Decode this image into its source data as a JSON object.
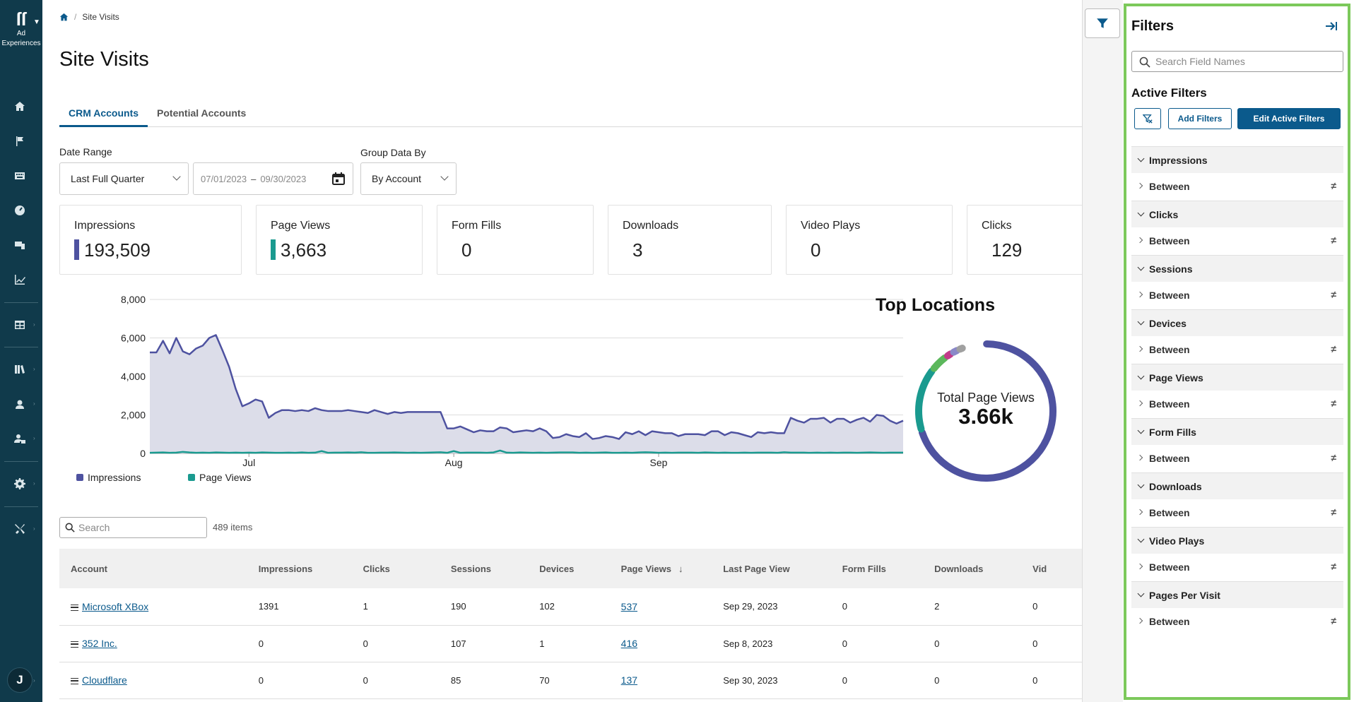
{
  "app": {
    "logo_text_1": "Ad",
    "logo_text_2": "Experiences",
    "avatar_initial": "J"
  },
  "breadcrumb": {
    "current": "Site Visits"
  },
  "page_title": "Site Visits",
  "tabs": [
    "CRM Accounts",
    "Potential Accounts"
  ],
  "controls": {
    "date_range_label": "Date Range",
    "date_range_value": "Last Full Quarter",
    "date_from": "07/01/2023",
    "date_to": "09/30/2023",
    "date_dash": "–",
    "group_label": "Group Data By",
    "group_value": "By Account"
  },
  "metrics": [
    {
      "label": "Impressions",
      "value": "193,509",
      "color": "#4e52a0"
    },
    {
      "label": "Page Views",
      "value": "3,663",
      "color": "#1a9a8f"
    },
    {
      "label": "Form Fills",
      "value": "0"
    },
    {
      "label": "Downloads",
      "value": "3"
    },
    {
      "label": "Video Plays",
      "value": "0"
    },
    {
      "label": "Clicks",
      "value": "129"
    }
  ],
  "chart_data": {
    "type": "area",
    "y_ticks": [
      "8,000",
      "6,000",
      "4,000",
      "2,000",
      "0"
    ],
    "ylim": [
      0,
      8000
    ],
    "x_ticks": [
      "Jul",
      "Aug",
      "Sep"
    ],
    "x_tick_index": [
      15,
      46,
      77
    ],
    "series": [
      {
        "name": "Impressions",
        "color": "#4e52a0",
        "fill": "#dcdde9",
        "values": [
          5250,
          5250,
          5850,
          5200,
          6000,
          5300,
          5150,
          5450,
          5600,
          6000,
          6150,
          5350,
          4500,
          3350,
          2450,
          2600,
          2800,
          2700,
          1850,
          2100,
          2250,
          2250,
          2200,
          2250,
          2200,
          2350,
          2250,
          2200,
          2200,
          2200,
          2250,
          2200,
          2150,
          2100,
          2250,
          2150,
          2050,
          2150,
          2100,
          2150,
          2150,
          2150,
          2150,
          2150,
          2150,
          1300,
          1300,
          1400,
          1250,
          1100,
          1200,
          1150,
          1150,
          1350,
          1300,
          1100,
          1150,
          1200,
          1150,
          1300,
          1150,
          800,
          850,
          1000,
          900,
          850,
          1050,
          750,
          800,
          900,
          850,
          750,
          1100,
          1000,
          1150,
          950,
          1150,
          1100,
          1050,
          1050,
          900,
          1000,
          1000,
          1000,
          950,
          1150,
          1150,
          950,
          1100,
          1050,
          950,
          850,
          1100,
          1050,
          1100,
          1050,
          1050,
          1850,
          1700,
          1600,
          1800,
          1800,
          1850,
          1600,
          1800,
          1800,
          1600,
          1750,
          1850,
          1650,
          2000,
          1950,
          1700,
          1550,
          1700
        ]
      },
      {
        "name": "Page Views",
        "color": "#1a9a8f",
        "values": [
          30,
          40,
          50,
          30,
          40,
          80,
          50,
          30,
          40,
          30,
          50,
          40,
          30,
          40,
          30,
          40,
          30,
          50,
          40,
          30,
          30,
          40,
          30,
          50,
          30,
          40,
          120,
          30,
          40,
          40,
          50,
          40,
          60,
          30,
          30,
          40,
          40,
          50,
          40,
          30,
          40,
          30,
          40,
          50,
          60,
          30,
          120,
          30,
          40,
          40,
          40,
          30,
          50,
          150,
          40,
          30,
          50,
          40,
          30,
          40,
          30,
          40,
          50,
          50,
          50,
          30,
          40,
          30,
          40,
          50,
          30,
          30,
          40,
          30,
          50,
          60,
          50,
          30,
          40,
          30,
          40,
          40,
          40,
          30,
          50,
          40,
          30,
          40,
          30,
          30,
          40,
          30,
          40,
          40,
          40,
          30,
          60,
          40,
          40,
          40,
          30,
          40,
          30,
          40,
          30,
          40,
          40,
          30,
          40,
          50,
          40,
          30,
          40,
          40,
          40
        ]
      }
    ]
  },
  "top_locations": {
    "title": "Top Locations",
    "center_label": "Total Page Views",
    "center_value": "3.66k",
    "slices": [
      {
        "value": 71,
        "color": "#4e52a0"
      },
      {
        "value": 15,
        "color": "#1a9a8f"
      },
      {
        "value": 4,
        "color": "#5cb85c"
      },
      {
        "value": 1.2,
        "color": "#c23b8a"
      },
      {
        "value": 1.2,
        "color": "#8a88c8"
      },
      {
        "value": 1,
        "color": "#a0a0a0"
      }
    ]
  },
  "table": {
    "search_placeholder": "Search",
    "item_count": "489 items",
    "columns": [
      "Account",
      "Impressions",
      "Clicks",
      "Sessions",
      "Devices",
      "Page Views",
      "Last Page View",
      "Form Fills",
      "Downloads",
      "Vid"
    ],
    "rows": [
      [
        "Microsoft XBox",
        "1391",
        "1",
        "190",
        "102",
        "537",
        "Sep 29, 2023",
        "0",
        "2",
        "0"
      ],
      [
        "352 Inc.",
        "0",
        "0",
        "107",
        "1",
        "416",
        "Sep 8, 2023",
        "0",
        "0",
        "0"
      ],
      [
        "Cloudflare",
        "0",
        "0",
        "85",
        "70",
        "137",
        "Sep 30, 2023",
        "0",
        "0",
        "0"
      ]
    ]
  },
  "filters": {
    "title": "Filters",
    "search_placeholder": "Search Field Names",
    "active_title": "Active Filters",
    "add_label": "Add Filters",
    "edit_label": "Edit Active Filters",
    "groups": [
      {
        "name": "Impressions",
        "row": "Between"
      },
      {
        "name": "Clicks",
        "row": "Between"
      },
      {
        "name": "Sessions",
        "row": "Between"
      },
      {
        "name": "Devices",
        "row": "Between"
      },
      {
        "name": "Page Views",
        "row": "Between"
      },
      {
        "name": "Form Fills",
        "row": "Between"
      },
      {
        "name": "Downloads",
        "row": "Between"
      },
      {
        "name": "Video Plays",
        "row": "Between"
      },
      {
        "name": "Pages Per Visit",
        "row": "Between"
      }
    ]
  }
}
